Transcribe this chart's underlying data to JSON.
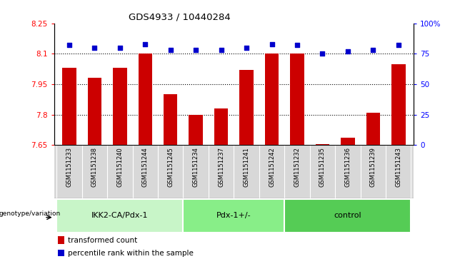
{
  "title": "GDS4933 / 10440284",
  "samples": [
    "GSM1151233",
    "GSM1151238",
    "GSM1151240",
    "GSM1151244",
    "GSM1151245",
    "GSM1151234",
    "GSM1151237",
    "GSM1151241",
    "GSM1151242",
    "GSM1151232",
    "GSM1151235",
    "GSM1151236",
    "GSM1151239",
    "GSM1151243"
  ],
  "transformed_count": [
    8.03,
    7.98,
    8.03,
    8.1,
    7.9,
    7.8,
    7.83,
    8.02,
    8.1,
    8.1,
    7.655,
    7.685,
    7.81,
    8.05
  ],
  "percentile_rank": [
    82,
    80,
    80,
    83,
    78,
    78,
    78,
    80,
    83,
    82,
    75,
    77,
    78,
    82
  ],
  "groups": [
    {
      "name": "IKK2-CA/Pdx-1",
      "start": 0,
      "end": 5,
      "color": "#c8f5c8"
    },
    {
      "name": "Pdx-1+/-",
      "start": 5,
      "end": 9,
      "color": "#88ee88"
    },
    {
      "name": "control",
      "start": 9,
      "end": 14,
      "color": "#55cc55"
    }
  ],
  "ylim_left": [
    7.65,
    8.25
  ],
  "ylim_right": [
    0,
    100
  ],
  "yticks_left": [
    7.65,
    7.8,
    7.95,
    8.1,
    8.25
  ],
  "yticks_right": [
    0,
    25,
    50,
    75,
    100
  ],
  "hlines": [
    8.1,
    7.95,
    7.8
  ],
  "bar_color": "#cc0000",
  "dot_color": "#0000cc",
  "bar_width": 0.55,
  "xlabel_group": "genotype/variation",
  "legend_transformed": "transformed count",
  "legend_percentile": "percentile rank within the sample",
  "sample_area_color": "#d8d8d8",
  "background_color": "#ffffff"
}
